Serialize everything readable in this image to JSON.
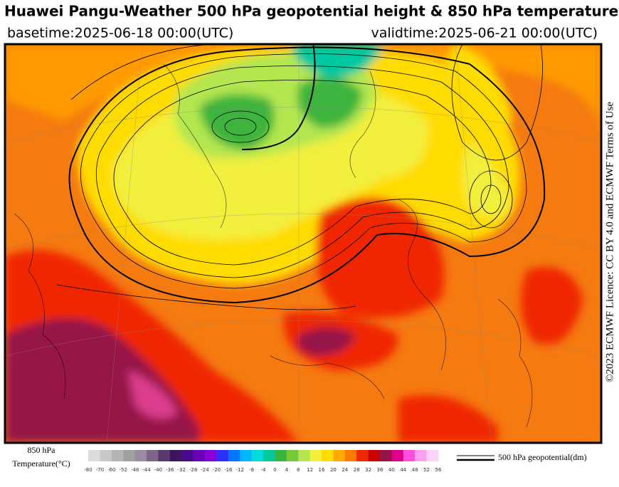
{
  "header": {
    "title": "Huawei Pangu-Weather 500 hPa geopotential height & 850 hPa temperature",
    "basetime": "basetime:2025-06-18 00:00(UTC)",
    "validtime": "validtime:2025-06-21 00:00(UTC)"
  },
  "license": "©2023 ECMWF Licence: CC BY 4.0 and ECMWF Terms of Use",
  "legend": {
    "temperature_label": [
      "850 hPa",
      "Temperature(°C)"
    ],
    "colorbar": {
      "ticks": [
        -80,
        -70,
        -60,
        -52,
        -48,
        -44,
        -40,
        -36,
        -32,
        -28,
        -24,
        -20,
        -16,
        -12,
        -8,
        -4,
        0,
        4,
        8,
        12,
        16,
        20,
        24,
        28,
        32,
        36,
        40,
        44,
        48,
        52,
        56
      ],
      "colors": [
        "#dcdcdc",
        "#c8c8c8",
        "#b4b4b4",
        "#a0a0a0",
        "#9c8aa0",
        "#7e6688",
        "#5a3a6e",
        "#3c1460",
        "#4a0a8c",
        "#6a00b4",
        "#8c00dc",
        "#2e2eff",
        "#0078ff",
        "#00b4ff",
        "#00dcdc",
        "#00c8a0",
        "#3cb43c",
        "#78c83c",
        "#b4e650",
        "#f0f03c",
        "#ffdc00",
        "#ffaa00",
        "#ff7800",
        "#f02800",
        "#c80000",
        "#961446",
        "#dc008c",
        "#ff50dc",
        "#ffa0f0",
        "#ffd2fa"
      ]
    },
    "geopotential_label": "500 hPa geopotential(dm)"
  }
}
